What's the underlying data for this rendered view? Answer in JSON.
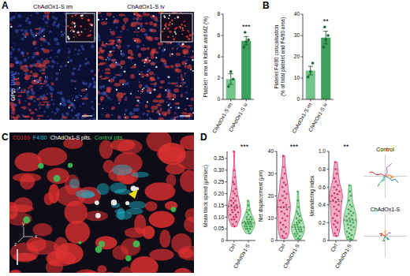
{
  "panel_labels": [
    "A",
    "B",
    "C",
    "D"
  ],
  "images": {
    "A": {
      "labels": [
        "ChAdOx1-S im",
        "ChAdOx1-S iv"
      ],
      "channels": [
        {
          "text": "F4/80",
          "color": "#e8413c"
        },
        {
          "text": "GPIb",
          "color": "#ffffff"
        },
        {
          "text": "DNA",
          "color": "#5b7bff"
        }
      ],
      "asterisk": "*"
    },
    "C": {
      "channels": [
        {
          "text": "CD169",
          "color": "#e03131"
        },
        {
          "text": "F4/80",
          "color": "#22b8cf"
        },
        {
          "text": "ChAdOx1-S plts.",
          "color": "#ffffff"
        },
        {
          "text": "Control plts.",
          "color": "#40c057"
        }
      ],
      "axes": [
        "x",
        "y",
        "z"
      ]
    }
  },
  "chart_data": [
    {
      "type": "bar",
      "ylabel": "Platelet⁺ area in follicle and MZ (%)",
      "categories": [
        "ChAdOx1-S im",
        "ChAdOx1-S iv"
      ],
      "values": [
        1.9,
        5.5
      ],
      "errors": [
        0.5,
        0.4
      ],
      "points": [
        [
          1.2,
          2.6,
          1.9
        ],
        [
          4.9,
          5.4,
          5.6,
          6.3
        ]
      ],
      "colors": [
        "#74c48a",
        "#3f9f5c"
      ],
      "ylim": [
        0,
        8
      ],
      "yticks": [
        0,
        2,
        4,
        6,
        8
      ],
      "annotation": "***"
    },
    {
      "type": "bar",
      "ylabel": [
        "Platelet F4/80 colocalisation",
        "(% of total platelet and F4/80 area)"
      ],
      "categories": [
        "ChAdOx1-S im",
        "ChAdOx1-S iv"
      ],
      "values": [
        13.5,
        29
      ],
      "errors": [
        2,
        3
      ],
      "points": [
        [
          10.5,
          13,
          17
        ],
        [
          24.5,
          28,
          30,
          34
        ]
      ],
      "colors": [
        "#74c48a",
        "#3f9f5c"
      ],
      "ylim": [
        0,
        40
      ],
      "yticks": [
        0,
        10,
        20,
        30,
        40
      ],
      "annotation": "**"
    },
    {
      "type": "violin",
      "ylabel": "Mean track speed (μm/sec)",
      "categories": [
        "Ctrl",
        "ChAdOx1-S"
      ],
      "points": [
        [
          0.38,
          0.3,
          0.27,
          0.25,
          0.24,
          0.22,
          0.21,
          0.2,
          0.19,
          0.18,
          0.17,
          0.17,
          0.16,
          0.15,
          0.15,
          0.14,
          0.14,
          0.13,
          0.13,
          0.12,
          0.12,
          0.11,
          0.11,
          0.1,
          0.1,
          0.09,
          0.09,
          0.08,
          0.07,
          0.06
        ],
        [
          0.17,
          0.15,
          0.13,
          0.12,
          0.11,
          0.1,
          0.1,
          0.09,
          0.09,
          0.09,
          0.08,
          0.08,
          0.08,
          0.08,
          0.07,
          0.07,
          0.07,
          0.07,
          0.07,
          0.06,
          0.06,
          0.06,
          0.06,
          0.05,
          0.05,
          0.05,
          0.04,
          0.03
        ]
      ],
      "colors": [
        "#d6336c",
        "#40a851"
      ],
      "ylim": [
        0,
        0.38
      ],
      "yticks": [
        0,
        0.05,
        {
          "value": 0.1,
          "label": "0.10"
        },
        0.15,
        {
          "value": 0.2,
          "label": "0.20"
        },
        0.25,
        {
          "value": 0.3,
          "label": "0.30"
        },
        0.35
      ],
      "annotation": "***"
    },
    {
      "type": "violin",
      "ylabel": "Net displacement (μm)",
      "categories": [
        "Ctrl",
        "ChAdOx1-S"
      ],
      "points": [
        [
          38,
          33,
          30,
          28,
          26,
          25,
          24,
          22,
          21,
          20,
          19,
          18,
          17,
          16,
          15,
          15,
          14,
          13,
          12,
          11,
          10,
          9,
          8,
          7,
          6,
          5,
          4,
          3,
          2,
          1
        ],
        [
          22,
          18,
          15,
          13,
          12,
          11,
          10,
          9,
          9,
          8,
          8,
          7,
          7,
          6,
          6,
          6,
          5,
          5,
          5,
          4,
          4,
          4,
          3,
          3,
          2,
          2,
          1,
          0.5
        ]
      ],
      "colors": [
        "#d6336c",
        "#40a851"
      ],
      "ylim": [
        0,
        40
      ],
      "yticks": [
        0,
        10,
        20,
        30,
        40
      ],
      "annotation": "***"
    },
    {
      "type": "violin",
      "ylabel": "Meandering index",
      "categories": [
        "Ctrl",
        "ChAdOx1-S"
      ],
      "points": [
        [
          0.88,
          0.8,
          0.75,
          0.7,
          0.66,
          0.62,
          0.6,
          0.57,
          0.55,
          0.53,
          0.52,
          0.5,
          0.48,
          0.46,
          0.45,
          0.43,
          0.4,
          0.38,
          0.35,
          0.33,
          0.3,
          0.28,
          0.25,
          0.22,
          0.2,
          0.18,
          0.15,
          0.12,
          0.08,
          0.05
        ],
        [
          0.62,
          0.55,
          0.5,
          0.45,
          0.4,
          0.38,
          0.35,
          0.33,
          0.31,
          0.3,
          0.28,
          0.27,
          0.25,
          0.24,
          0.22,
          0.21,
          0.2,
          0.18,
          0.17,
          0.15,
          0.14,
          0.12,
          0.1,
          0.08,
          0.06,
          0.04,
          0.02,
          0.01
        ]
      ],
      "colors": [
        "#d6336c",
        "#40a851"
      ],
      "ylim": [
        0,
        1
      ],
      "yticks": [
        0,
        0.2,
        0.4,
        0.6,
        0.8,
        {
          "value": 1,
          "label": "1.0"
        }
      ],
      "annotation": "**"
    },
    {
      "type": "line",
      "title": "Control",
      "xlim": [
        -30,
        30
      ],
      "ylim": [
        -30,
        30
      ],
      "tick_labels": false,
      "series": [
        {
          "color": "#d62728",
          "x": [
            0,
            -5,
            -12,
            -18,
            -22
          ],
          "values": [
            0,
            3,
            2,
            6,
            5
          ]
        },
        {
          "color": "#2ca02c",
          "x": [
            0,
            -4,
            -8,
            -10
          ],
          "values": [
            0,
            -6,
            -10,
            -14
          ]
        },
        {
          "color": "#1f77b4",
          "x": [
            0,
            5,
            9,
            14,
            18
          ],
          "values": [
            0,
            -2,
            -6,
            -4,
            -9
          ]
        },
        {
          "color": "#9467bd",
          "x": [
            0,
            3,
            2,
            6,
            9
          ],
          "values": [
            0,
            6,
            12,
            15,
            18
          ]
        },
        {
          "color": "#ff7f0e",
          "x": [
            0,
            4,
            10,
            7,
            12
          ],
          "values": [
            0,
            2,
            0,
            -3,
            -1
          ]
        },
        {
          "color": "#17becf",
          "x": [
            0,
            -3,
            -1,
            -6
          ],
          "values": [
            0,
            -2,
            -5,
            -8
          ]
        }
      ]
    },
    {
      "type": "line",
      "title": "ChAdOx1-S",
      "xlim": [
        -30,
        30
      ],
      "ylim": [
        -30,
        30
      ],
      "tick_labels": false,
      "series": [
        {
          "color": "#d62728",
          "x": [
            0,
            -3,
            -6,
            -4,
            -8
          ],
          "values": [
            0,
            2,
            1,
            4,
            3
          ]
        },
        {
          "color": "#1f77b4",
          "x": [
            0,
            2,
            4,
            3,
            6
          ],
          "values": [
            0,
            -3,
            -2,
            -5,
            -4
          ]
        },
        {
          "color": "#2ca02c",
          "x": [
            0,
            -2,
            -1,
            -4
          ],
          "values": [
            0,
            -4,
            -7,
            -6
          ]
        },
        {
          "color": "#9467bd",
          "x": [
            0,
            3,
            5,
            8
          ],
          "values": [
            0,
            2,
            5,
            4
          ]
        },
        {
          "color": "#ff7f0e",
          "x": [
            0,
            1,
            -1,
            2
          ],
          "values": [
            0,
            3,
            6,
            8
          ]
        }
      ]
    }
  ]
}
